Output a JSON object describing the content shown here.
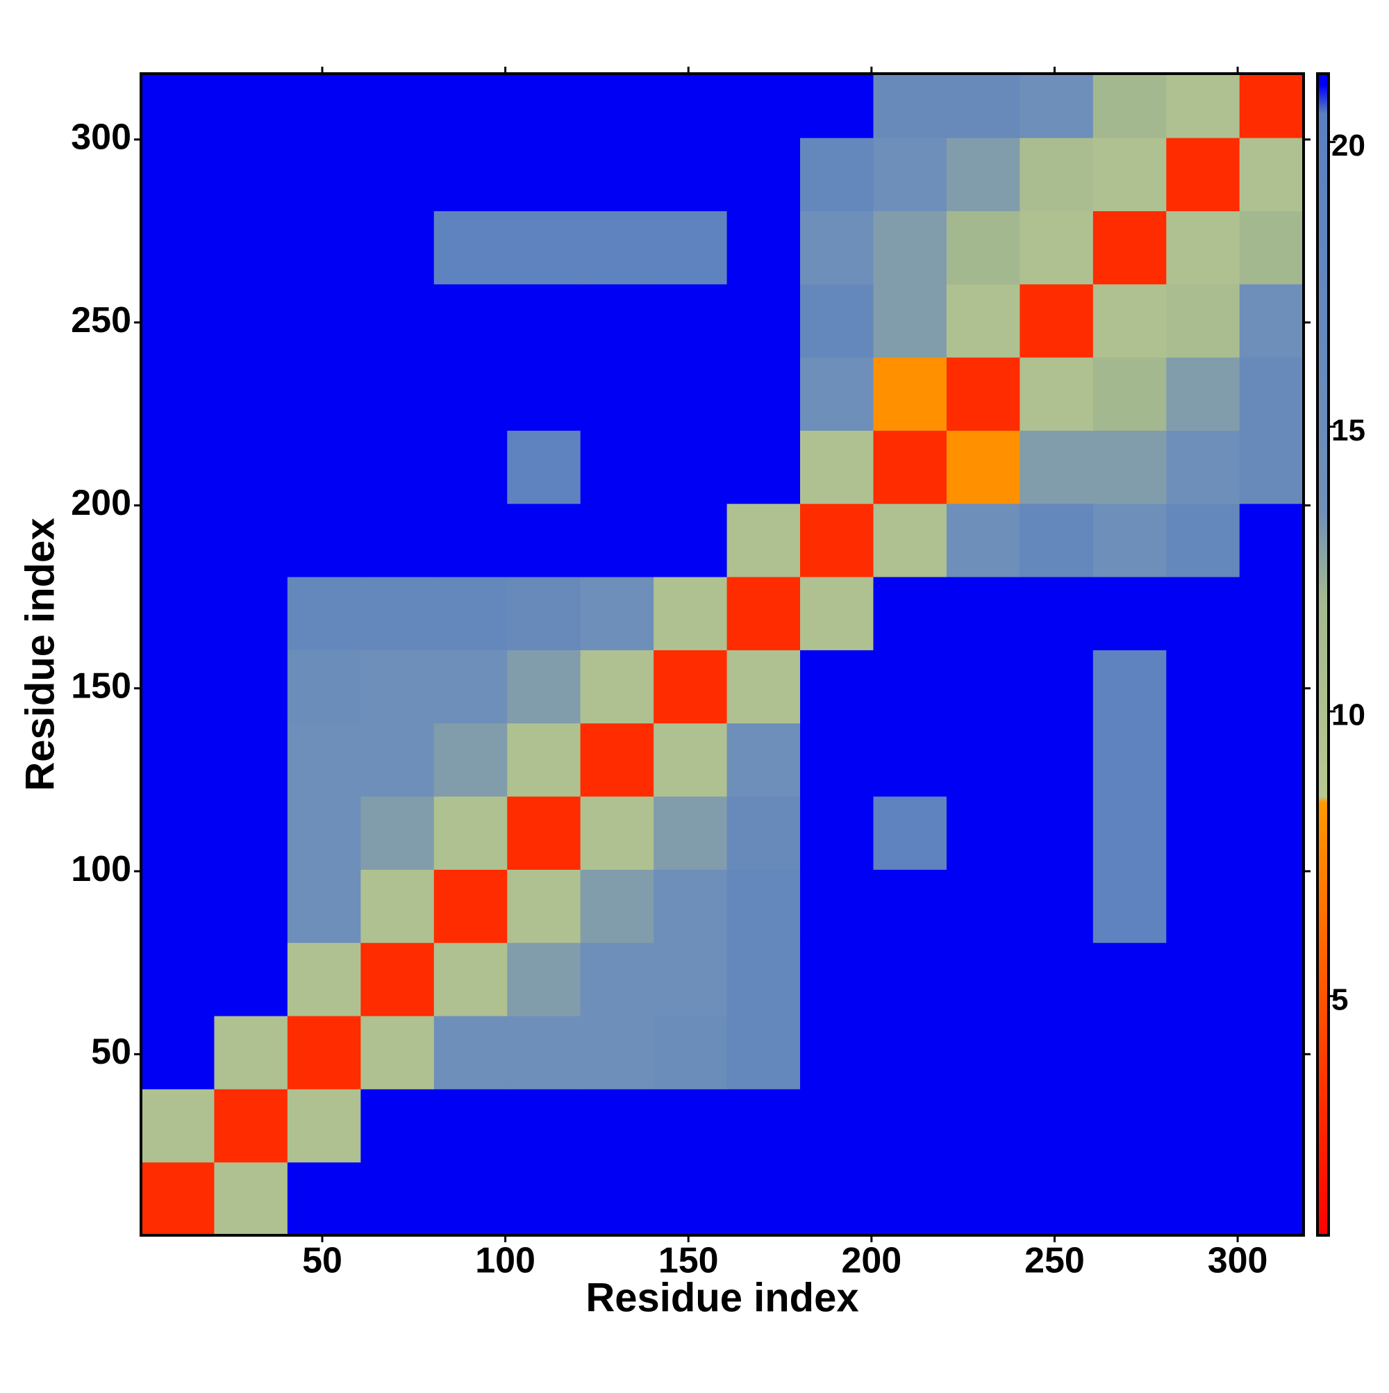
{
  "chart_data": {
    "type": "heatmap",
    "x_label": "Residue index",
    "y_label": "Residue index",
    "bins": [
      0.5,
      20.5,
      40.5,
      60.5,
      80.5,
      100.5,
      120.5,
      140.5,
      160.5,
      180.5,
      200.5,
      220.5,
      240.5,
      260.5,
      280.5,
      300.5,
      318
    ],
    "values": [
      [
        3,
        10,
        21,
        21,
        21,
        21,
        21,
        21,
        21,
        21,
        21,
        21,
        21,
        21,
        21,
        21
      ],
      [
        10,
        3,
        10,
        21,
        21,
        21,
        21,
        21,
        21,
        21,
        21,
        21,
        21,
        21,
        21,
        21
      ],
      [
        21,
        10,
        3,
        10,
        14,
        14,
        14,
        15,
        17,
        21,
        21,
        21,
        21,
        21,
        21,
        21
      ],
      [
        21,
        21,
        10,
        3,
        10,
        13,
        14,
        14,
        17,
        21,
        21,
        21,
        21,
        21,
        21,
        21
      ],
      [
        21,
        21,
        14,
        10,
        3,
        10,
        13,
        14,
        17,
        21,
        21,
        21,
        21,
        19,
        21,
        21
      ],
      [
        21,
        21,
        14,
        13,
        10,
        3,
        10,
        13,
        16,
        21,
        19,
        21,
        21,
        19,
        21,
        21
      ],
      [
        21,
        21,
        14,
        14,
        13,
        10,
        3,
        10,
        14,
        21,
        21,
        21,
        21,
        19,
        21,
        21
      ],
      [
        21,
        21,
        15,
        14,
        14,
        13,
        10,
        3,
        10,
        21,
        21,
        21,
        21,
        19,
        21,
        21
      ],
      [
        21,
        21,
        17,
        17,
        17,
        16,
        14,
        10,
        3,
        10,
        21,
        21,
        21,
        21,
        21,
        21
      ],
      [
        21,
        21,
        21,
        21,
        21,
        21,
        21,
        21,
        10,
        3,
        10,
        14,
        17,
        14,
        17,
        21
      ],
      [
        21,
        21,
        21,
        21,
        21,
        19,
        21,
        21,
        21,
        10,
        3,
        8,
        13,
        13,
        14,
        16
      ],
      [
        21,
        21,
        21,
        21,
        21,
        21,
        21,
        21,
        21,
        14,
        8,
        3,
        10,
        12,
        13,
        16
      ],
      [
        21,
        21,
        21,
        21,
        21,
        21,
        21,
        21,
        21,
        17,
        13,
        10,
        3,
        10,
        11,
        14
      ],
      [
        21,
        21,
        21,
        21,
        19,
        19,
        19,
        19,
        21,
        14,
        13,
        12,
        10,
        3,
        10,
        12
      ],
      [
        21,
        21,
        21,
        21,
        21,
        21,
        21,
        21,
        21,
        17,
        14,
        13,
        11,
        10,
        3,
        10
      ],
      [
        21,
        21,
        21,
        21,
        21,
        21,
        21,
        21,
        21,
        21,
        16,
        16,
        14,
        12,
        10,
        3
      ]
    ],
    "xlim": [
      0.5,
      318
    ],
    "ylim": [
      0.5,
      318
    ],
    "xticks": [
      50,
      100,
      150,
      200,
      250,
      300
    ],
    "yticks": [
      50,
      100,
      150,
      200,
      250,
      300
    ],
    "zlim": [
      0.8,
      21.2
    ],
    "zticks": [
      5,
      10,
      15,
      20
    ],
    "colorscale": [
      [
        0.8,
        "#ff0000"
      ],
      [
        8.4,
        "#ff9900"
      ],
      [
        8.5,
        "#b8c890"
      ],
      [
        12,
        "#a4b890"
      ],
      [
        13.5,
        "#7090b8"
      ],
      [
        20.5,
        "#5a80c0"
      ],
      [
        21,
        "#0000f5"
      ]
    ]
  }
}
